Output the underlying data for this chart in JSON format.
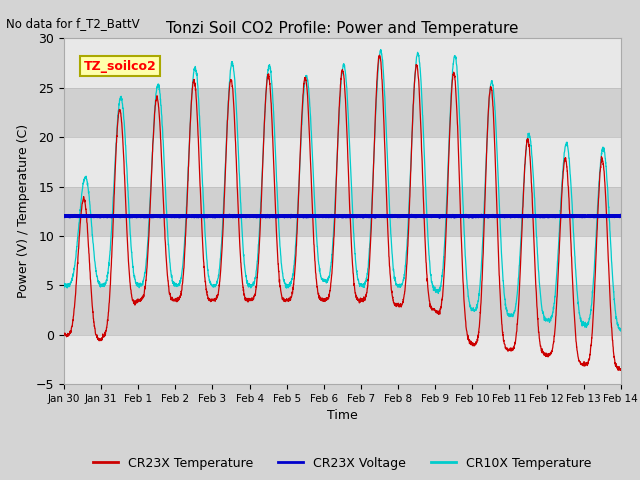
{
  "title": "Tonzi Soil CO2 Profile: Power and Temperature",
  "no_data_text": "No data for f_T2_BattV",
  "xlabel": "Time",
  "ylabel": "Power (V) / Temperature (C)",
  "ylim": [
    -5,
    30
  ],
  "yticks": [
    -5,
    0,
    5,
    10,
    15,
    20,
    25,
    30
  ],
  "fig_facecolor": "#d4d4d4",
  "plot_bg_color": "#e8e8e8",
  "stripe_color": "#d0d0d0",
  "voltage_value": 12.0,
  "voltage_color": "#0000cc",
  "cr23x_temp_color": "#cc0000",
  "cr10x_temp_color": "#00cccc",
  "legend_label_cr23x": "CR23X Temperature",
  "legend_label_voltage": "CR23X Voltage",
  "legend_label_cr10x": "CR10X Temperature",
  "annotation_text": "TZ_soilco2",
  "annotation_bg": "#ffffaa",
  "annotation_border": "#aaa800",
  "x_tick_labels": [
    "Jan 30",
    "Jan 31",
    "Feb 1",
    "Feb 2",
    "Feb 3",
    "Feb 4",
    "Feb 5",
    "Feb 6",
    "Feb 7",
    "Feb 8",
    "Feb 9",
    "Feb 10",
    "Feb 11",
    "Feb 12",
    "Feb 13",
    "Feb 14"
  ],
  "x_tick_positions": [
    0,
    1,
    2,
    3,
    4,
    5,
    6,
    7,
    8,
    9,
    10,
    11,
    12,
    13,
    14,
    15
  ],
  "num_points": 3000
}
